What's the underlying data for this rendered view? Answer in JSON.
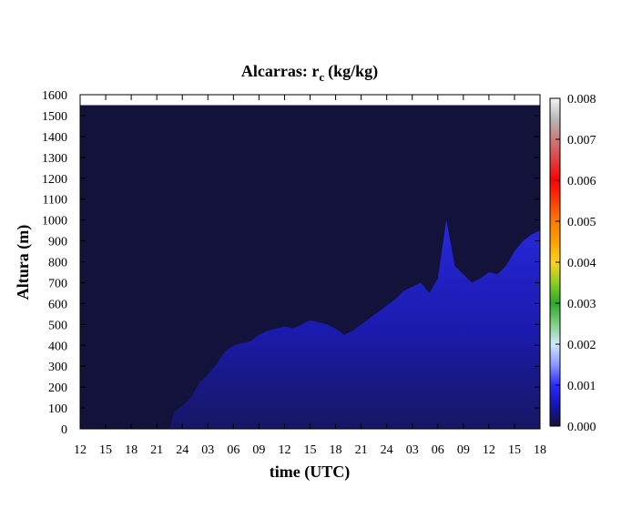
{
  "chart_data": {
    "type": "heatmap",
    "title_main": "Alcarras: r",
    "title_sub": "c",
    "title_unit": "(kg/kg)",
    "xlabel": "time (UTC)",
    "ylabel": "Altura (m)",
    "x_ticks": [
      "12",
      "15",
      "18",
      "21",
      "24",
      "03",
      "06",
      "09",
      "12",
      "15",
      "18",
      "21",
      "24",
      "03",
      "06",
      "09",
      "12",
      "15",
      "18"
    ],
    "x_range_hours": [
      0,
      54
    ],
    "y_ticks": [
      0,
      100,
      200,
      300,
      400,
      500,
      600,
      700,
      800,
      900,
      1000,
      1100,
      1200,
      1300,
      1400,
      1500,
      1600
    ],
    "ylim": [
      0,
      1600
    ],
    "data_top_m": 1550,
    "colorbar": {
      "ticks": [
        "0.000",
        "0.001",
        "0.002",
        "0.003",
        "0.004",
        "0.005",
        "0.006",
        "0.007",
        "0.008"
      ],
      "range": [
        0,
        0.008
      ],
      "stops": [
        {
          "v": 0.0,
          "c": "#12123a"
        },
        {
          "v": 0.0005,
          "c": "#1414b4"
        },
        {
          "v": 0.001,
          "c": "#2a2aff"
        },
        {
          "v": 0.0015,
          "c": "#8c96ff"
        },
        {
          "v": 0.002,
          "c": "#cfe8ff"
        },
        {
          "v": 0.0025,
          "c": "#7fd07f"
        },
        {
          "v": 0.003,
          "c": "#2aa82a"
        },
        {
          "v": 0.0035,
          "c": "#8ccf20"
        },
        {
          "v": 0.004,
          "c": "#ffd21e"
        },
        {
          "v": 0.0045,
          "c": "#ffa000"
        },
        {
          "v": 0.005,
          "c": "#ff7a00"
        },
        {
          "v": 0.0055,
          "c": "#ff3c00"
        },
        {
          "v": 0.006,
          "c": "#ff0000"
        },
        {
          "v": 0.0065,
          "c": "#e04040"
        },
        {
          "v": 0.007,
          "c": "#d07878"
        },
        {
          "v": 0.0075,
          "c": "#b8b8b8"
        },
        {
          "v": 0.008,
          "c": "#f4f4f4"
        }
      ]
    },
    "background_color": "#12123a",
    "cloud_layer": {
      "hours": [
        10.5,
        11,
        12,
        13,
        14,
        15,
        16,
        17,
        18,
        19,
        20,
        21,
        22,
        23,
        24,
        25,
        26,
        27,
        28,
        29,
        30,
        31,
        32,
        33,
        34,
        35,
        36,
        37,
        38,
        39,
        40,
        41,
        42,
        43,
        44,
        45,
        46,
        47,
        48,
        49,
        50,
        51,
        52,
        53,
        54
      ],
      "top_m": [
        0,
        80,
        110,
        150,
        220,
        260,
        310,
        370,
        400,
        410,
        420,
        450,
        470,
        480,
        490,
        480,
        500,
        520,
        510,
        500,
        480,
        450,
        470,
        500,
        530,
        560,
        590,
        620,
        660,
        680,
        700,
        650,
        720,
        1000,
        780,
        740,
        700,
        720,
        750,
        740,
        780,
        850,
        900,
        930,
        950
      ],
      "value": 0.0007
    }
  }
}
